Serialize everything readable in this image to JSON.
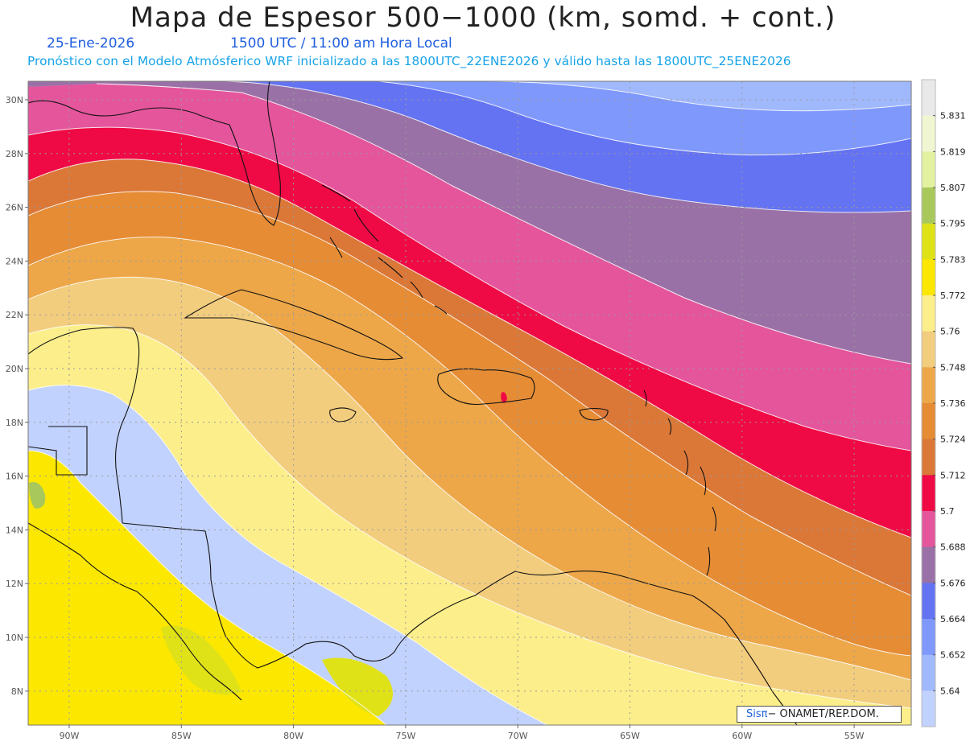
{
  "header": {
    "title": "Mapa de Espesor 500−1000 (km, somd. + cont.)",
    "date": "25-Ene-2026",
    "time": "1500 UTC / 11:00 am Hora Local",
    "info": "Pronóstico con el Modelo Atmósferico WRF inicializado a las 1800UTC_22ENE2026 y válido hasta las  1800UTC_25ENE2026",
    "subtitle_color": "#1f5fe0",
    "info_color": "#16a3e8"
  },
  "map": {
    "lat_labels": [
      "30N",
      "28N",
      "26N",
      "24N",
      "22N",
      "20N",
      "18N",
      "16N",
      "14N",
      "12N",
      "10N",
      "8N"
    ],
    "lon_labels": [
      "90W",
      "85W",
      "80W",
      "75W",
      "70W",
      "65W",
      "60W",
      "55W"
    ]
  },
  "colorbar": {
    "labels": [
      "5.831",
      "5.819",
      "5.807",
      "5.795",
      "5.783",
      "5.772",
      "5.76",
      "5.748",
      "5.736",
      "5.724",
      "5.712",
      "5.7",
      "5.688",
      "5.676",
      "5.664",
      "5.652",
      "5.64"
    ],
    "colors": [
      "#e9e9e9",
      "#f1f6d2",
      "#e2f2a0",
      "#a8c85c",
      "#e0e218",
      "#fbe700",
      "#fcee8a",
      "#f2cd7e",
      "#eda749",
      "#e58c35",
      "#db7838",
      "#ef0a45",
      "#e4559c",
      "#9a71a6",
      "#6473f2",
      "#7f98fc",
      "#a0b8fc",
      "#c2d2fe"
    ]
  },
  "credit": {
    "logo": "Sisπ",
    "text": "− ONAMET/REP.DOM."
  }
}
